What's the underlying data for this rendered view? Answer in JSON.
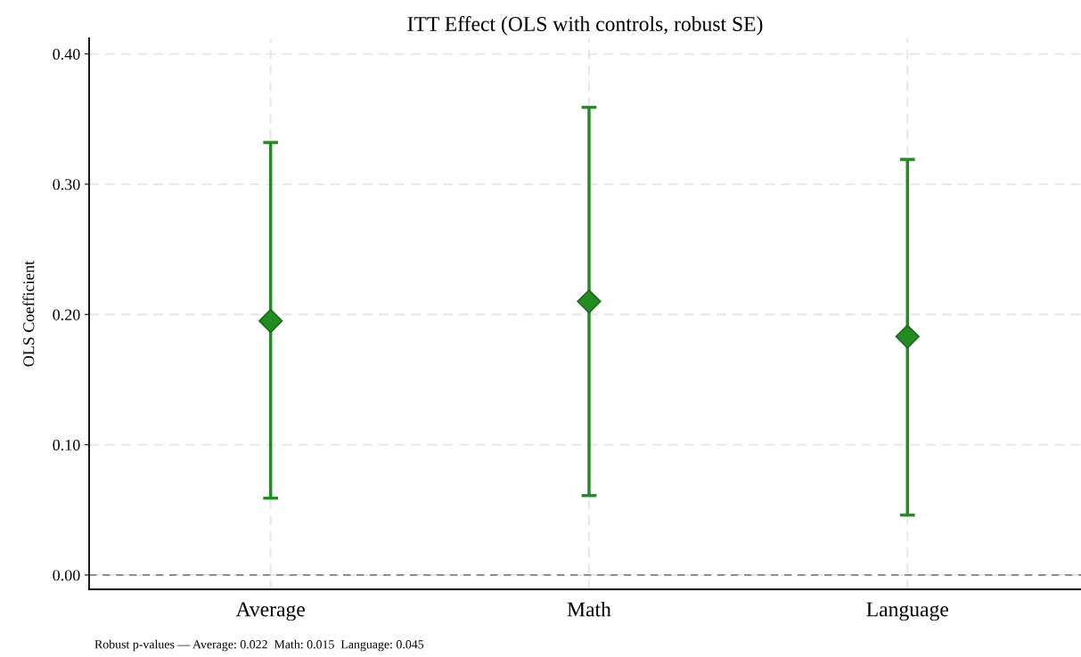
{
  "chart_data": {
    "type": "scatter",
    "title": "ITT Effect (OLS with controls, robust SE)",
    "ylabel": "OLS Coefficient",
    "categories": [
      "Average",
      "Math",
      "Language"
    ],
    "series": [
      {
        "color": "#228b22",
        "values": [
          0.195,
          0.21,
          0.183
        ],
        "errors": [
          [
            0.059,
            0.332
          ],
          [
            0.061,
            0.359
          ],
          [
            0.046,
            0.319
          ]
        ]
      }
    ],
    "ylim": [
      -0.011,
      0.412
    ],
    "yticks": [
      {
        "value": 0,
        "label": "0.00"
      },
      {
        "value": 0.1,
        "label": "0.10"
      },
      {
        "value": 0.2,
        "label": "0.20"
      },
      {
        "value": 0.3,
        "label": "0.30"
      },
      {
        "value": 0.4,
        "label": "0.40"
      }
    ],
    "grid": true,
    "marker": "diamond",
    "ref_lines": [
      {
        "axis": "y",
        "value": 0,
        "color": "#808080",
        "line_style": "dashed"
      }
    ],
    "annotations": [
      "Robust p-values — Average: 0.022  Math: 0.015  Language: 0.045"
    ]
  }
}
